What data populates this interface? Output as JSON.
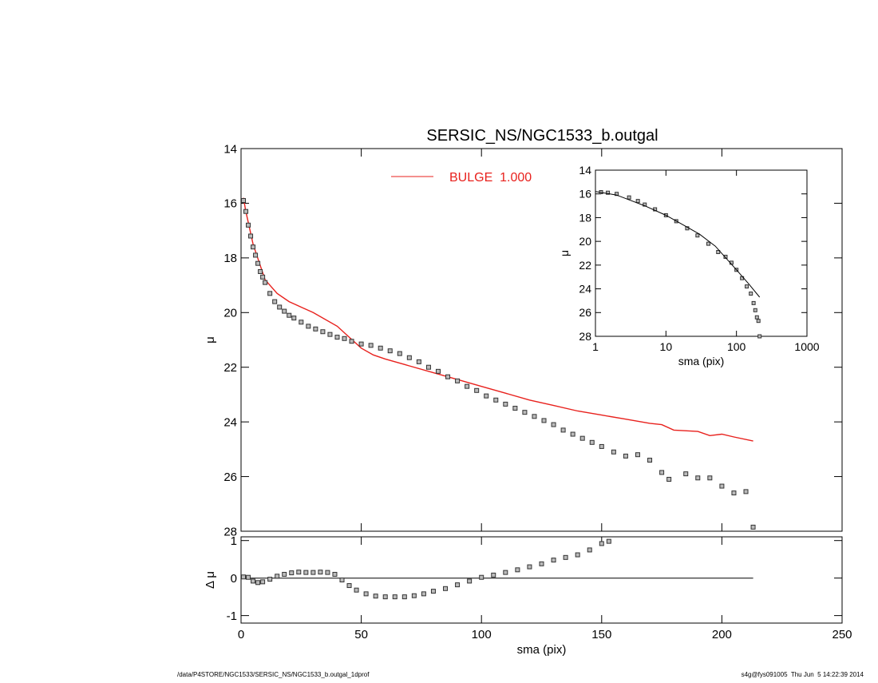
{
  "chart_data": [
    {
      "type": "scatter",
      "title": "SERSIC_NS/NGC1533_b.outgal",
      "ylabel": "μ",
      "xlim": [
        0,
        250
      ],
      "xticks": [
        0,
        50,
        100,
        150,
        200,
        250
      ],
      "xtick_labels": false,
      "ylim": [
        28,
        14
      ],
      "yticks": [
        14,
        16,
        18,
        20,
        22,
        24,
        26,
        28
      ],
      "legend": "top",
      "series": [
        {
          "name": "BULGE  1.000",
          "mode": "line",
          "color": "#e8211d",
          "x": [
            1,
            2,
            5,
            10,
            15,
            20,
            30,
            40,
            45,
            50,
            55,
            60,
            70,
            80,
            90,
            100,
            110,
            120,
            130,
            140,
            150,
            160,
            170,
            175,
            180,
            190,
            195,
            200,
            205,
            213
          ],
          "values": [
            15.8,
            16.3,
            17.5,
            18.8,
            19.3,
            19.6,
            20.0,
            20.5,
            20.9,
            21.3,
            21.55,
            21.7,
            21.95,
            22.2,
            22.45,
            22.7,
            22.95,
            23.2,
            23.4,
            23.6,
            23.75,
            23.9,
            24.05,
            24.1,
            24.3,
            24.35,
            24.5,
            24.45,
            24.55,
            24.7
          ]
        },
        {
          "mode": "markers",
          "color": "#333333",
          "x": [
            1,
            2,
            3,
            4,
            5,
            6,
            7,
            8,
            9,
            10,
            12,
            14,
            16,
            18,
            20,
            22,
            25,
            28,
            31,
            34,
            37,
            40,
            43,
            46,
            50,
            54,
            58,
            62,
            66,
            70,
            74,
            78,
            82,
            86,
            90,
            94,
            98,
            102,
            106,
            110,
            114,
            118,
            122,
            126,
            130,
            134,
            138,
            142,
            146,
            150,
            155,
            160,
            165,
            170,
            175,
            178,
            185,
            190,
            195,
            200,
            205,
            210,
            213
          ],
          "values": [
            15.9,
            16.3,
            16.8,
            17.2,
            17.6,
            17.9,
            18.2,
            18.5,
            18.7,
            18.9,
            19.3,
            19.6,
            19.8,
            19.95,
            20.1,
            20.2,
            20.35,
            20.5,
            20.6,
            20.7,
            20.8,
            20.9,
            20.95,
            21.05,
            21.15,
            21.2,
            21.3,
            21.4,
            21.5,
            21.65,
            21.8,
            22.0,
            22.15,
            22.35,
            22.5,
            22.7,
            22.85,
            23.05,
            23.2,
            23.35,
            23.5,
            23.65,
            23.8,
            23.95,
            24.1,
            24.3,
            24.45,
            24.6,
            24.75,
            24.9,
            25.1,
            25.25,
            25.2,
            25.4,
            25.85,
            26.1,
            25.9,
            26.05,
            26.05,
            26.35,
            26.6,
            26.55,
            27.85
          ]
        }
      ]
    },
    {
      "type": "scatter",
      "ylabel": "Δ μ",
      "xlabel": "sma (pix)",
      "xlim": [
        0,
        250
      ],
      "xticks": [
        0,
        50,
        100,
        150,
        200,
        250
      ],
      "ylim": [
        -1.2,
        1.1
      ],
      "yticks": [
        -1,
        0,
        1
      ],
      "series": [
        {
          "mode": "line",
          "color": "#000000",
          "x": [
            0,
            213
          ],
          "values": [
            0,
            0
          ]
        },
        {
          "mode": "markers",
          "color": "#333333",
          "x": [
            1,
            3,
            5,
            7,
            9,
            12,
            15,
            18,
            21,
            24,
            27,
            30,
            33,
            36,
            39,
            42,
            45,
            48,
            52,
            56,
            60,
            64,
            68,
            72,
            76,
            80,
            85,
            90,
            95,
            100,
            105,
            110,
            115,
            120,
            125,
            130,
            135,
            140,
            145,
            150,
            153
          ],
          "values": [
            0.03,
            0.02,
            -0.08,
            -0.12,
            -0.1,
            -0.03,
            0.05,
            0.1,
            0.14,
            0.16,
            0.15,
            0.15,
            0.16,
            0.15,
            0.1,
            -0.05,
            -0.2,
            -0.32,
            -0.42,
            -0.48,
            -0.5,
            -0.5,
            -0.5,
            -0.47,
            -0.42,
            -0.35,
            -0.28,
            -0.18,
            -0.08,
            0.02,
            0.08,
            0.15,
            0.22,
            0.3,
            0.38,
            0.48,
            0.55,
            0.62,
            0.75,
            0.92,
            0.98
          ]
        }
      ]
    },
    {
      "type": "scatter",
      "ylabel": "μ",
      "xlabel": "sma (pix)",
      "xlog": true,
      "xlim": [
        1,
        1000
      ],
      "xticks": [
        1,
        10,
        100,
        1000
      ],
      "ylim": [
        28,
        14
      ],
      "yticks": [
        14,
        16,
        18,
        20,
        22,
        24,
        26,
        28
      ],
      "series": [
        {
          "mode": "markers",
          "color": "#333333",
          "x": [
            1.2,
            1.5,
            2,
            3,
            4,
            5,
            7,
            10,
            14,
            20,
            28,
            40,
            55,
            70,
            85,
            100,
            120,
            140,
            160,
            175,
            185,
            195,
            205,
            213
          ],
          "values": [
            15.85,
            15.9,
            16.0,
            16.3,
            16.6,
            16.9,
            17.3,
            17.8,
            18.3,
            18.9,
            19.5,
            20.2,
            20.9,
            21.3,
            21.8,
            22.4,
            23.1,
            23.8,
            24.4,
            25.2,
            25.8,
            26.4,
            26.7,
            28.0
          ]
        },
        {
          "mode": "line",
          "color": "#000000",
          "x": [
            1,
            2,
            5,
            10,
            20,
            30,
            50,
            100,
            150,
            213
          ],
          "values": [
            15.8,
            16.1,
            17.0,
            17.8,
            18.8,
            19.4,
            20.4,
            22.4,
            23.6,
            24.7
          ]
        }
      ]
    }
  ],
  "footer": {
    "left": "/data/P4STORE/NGC1533/SERSIC_NS/NGC1533_b.outgal_1dprof",
    "right": "s4g@fys091005  Thu Jun  5 14:22:39 2014"
  }
}
